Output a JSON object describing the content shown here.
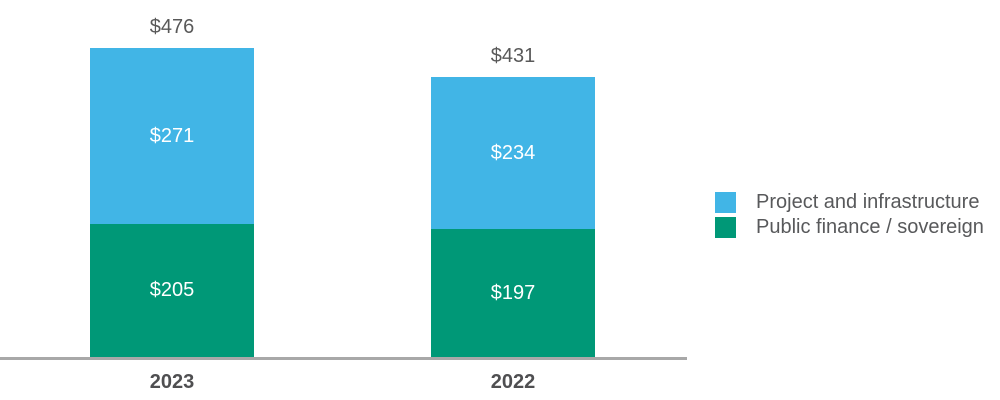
{
  "chart_data": {
    "type": "bar",
    "stacked": true,
    "categories": [
      "2023",
      "2022"
    ],
    "series": [
      {
        "name": "Public finance / sovereign",
        "color": "#009877",
        "values": [
          205,
          197
        ],
        "labels": [
          "$205",
          "$197"
        ]
      },
      {
        "name": "Project and infrastructure",
        "color": "#41b5e6",
        "values": [
          271,
          234
        ],
        "labels": [
          "$271",
          "$234"
        ]
      }
    ],
    "totals": [
      476,
      431
    ],
    "total_labels": [
      "$476",
      "$431"
    ],
    "value_label_color": "#ffffff",
    "total_label_color": "#595959",
    "category_label_color": "#4f4f51",
    "legend_position": "right",
    "grid": false,
    "axis": {
      "baseline_color": "#a8a8a8"
    }
  }
}
